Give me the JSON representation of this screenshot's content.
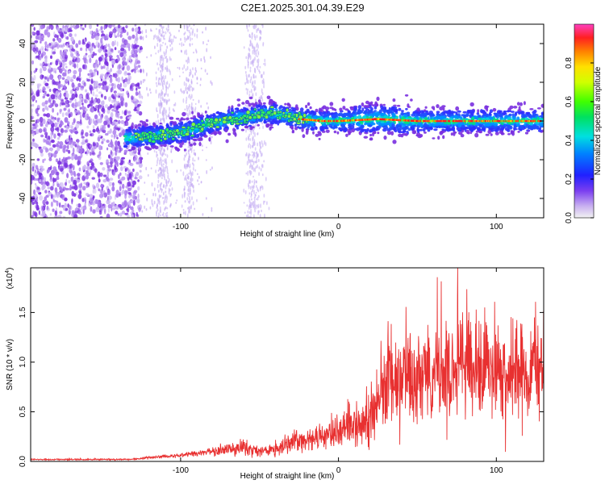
{
  "title": "C2E1.2025.301.04.39.E29",
  "chart_data": [
    {
      "type": "heatmap",
      "name": "spectrogram",
      "xlabel": "Height of straight line (km)",
      "ylabel": "Frequency (Hz)",
      "xlim": [
        -195,
        130
      ],
      "ylim": [
        -50,
        50
      ],
      "xticks": [
        -100,
        0,
        100
      ],
      "yticks": [
        -40,
        -20,
        0,
        20,
        40
      ],
      "colorbar": {
        "label": "Normalized spectral amplitude",
        "range": [
          0,
          1
        ],
        "ticks": [
          0.0,
          0.2,
          0.4,
          0.6,
          0.8
        ]
      },
      "ridge": {
        "heights_km": [
          -135,
          -120,
          -100,
          -80,
          -60,
          -40,
          -25,
          -10,
          0,
          25,
          50,
          75,
          100,
          125
        ],
        "frequency_hz": [
          -9,
          -8,
          -6,
          -1,
          2,
          4,
          1,
          0,
          0,
          1,
          0,
          0,
          0,
          0
        ]
      }
    },
    {
      "type": "line",
      "name": "snr",
      "xlabel": "Height of straight line (km)",
      "ylabel": "SNR (10 * v/v)",
      "scale_label_base": "(x10",
      "scale_label_exp": "4",
      "scale_label_end": ")",
      "xlim": [
        -195,
        130
      ],
      "ylim": [
        0,
        1.95
      ],
      "xticks": [
        -100,
        0,
        100
      ],
      "yticks": [
        0.0,
        0.5,
        1.0,
        1.5
      ],
      "series": [
        {
          "name": "SNR",
          "color": "#e83030",
          "envelope_x": [
            -195,
            -130,
            -120,
            -100,
            -80,
            -70,
            -60,
            -50,
            -40,
            -30,
            -20,
            -10,
            0,
            10,
            20,
            25,
            30,
            40,
            50,
            60,
            70,
            80,
            90,
            100,
            110,
            120,
            130
          ],
          "envelope_y": [
            0.02,
            0.02,
            0.04,
            0.06,
            0.1,
            0.12,
            0.14,
            0.1,
            0.12,
            0.2,
            0.22,
            0.26,
            0.3,
            0.35,
            0.45,
            0.6,
            0.75,
            0.85,
            0.9,
            0.9,
            0.92,
            0.95,
            0.88,
            0.9,
            0.88,
            0.88,
            0.9
          ]
        }
      ]
    }
  ]
}
